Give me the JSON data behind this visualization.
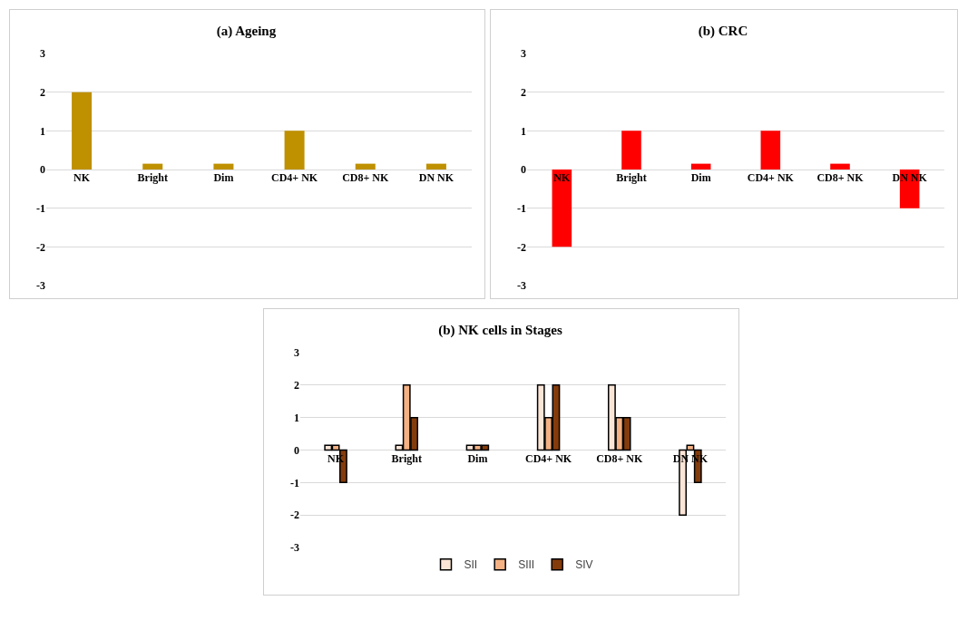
{
  "chart_data": [
    {
      "type": "bar",
      "title": "(a) Ageing",
      "categories": [
        "NK",
        "Bright",
        "Dim",
        "CD4+ NK",
        "CD8+ NK",
        "DN NK"
      ],
      "values": [
        2,
        0.15,
        0.15,
        1,
        0.15,
        0.15
      ],
      "color": "#bf9000",
      "ylim": [
        -3,
        3
      ],
      "yticks": [
        -3,
        -2,
        -1,
        0,
        1,
        2,
        3
      ],
      "grid": "y",
      "legend": false
    },
    {
      "type": "bar",
      "title": "(b) CRC",
      "categories": [
        "NK",
        "Bright",
        "Dim",
        "CD4+ NK",
        "CD8+ NK",
        "DN NK"
      ],
      "values": [
        -2,
        1,
        0.15,
        1,
        0.15,
        -1
      ],
      "color": "#ff0000",
      "ylim": [
        -3,
        3
      ],
      "yticks": [
        -3,
        -2,
        -1,
        0,
        1,
        2,
        3
      ],
      "grid": "y",
      "legend": false
    },
    {
      "type": "bar",
      "title": "(b) NK cells in Stages",
      "categories": [
        "NK",
        "Bright",
        "Dim",
        "CD4+ NK",
        "CD8+ NK",
        "DN NK"
      ],
      "series": [
        {
          "name": "SII",
          "color": "#fbe5d6",
          "values": [
            0.15,
            0.15,
            0.15,
            2,
            2,
            -2
          ]
        },
        {
          "name": "SIII",
          "color": "#f4b183",
          "values": [
            0.15,
            2,
            0.15,
            1,
            1,
            0.15
          ]
        },
        {
          "name": "SIV",
          "color": "#843c0c",
          "values": [
            -1,
            1,
            0.15,
            2,
            1,
            -1
          ]
        }
      ],
      "ylim": [
        -3,
        3
      ],
      "yticks": [
        -3,
        -2,
        -1,
        0,
        1,
        2,
        3
      ],
      "grid": "y",
      "legend": "bottom"
    }
  ]
}
